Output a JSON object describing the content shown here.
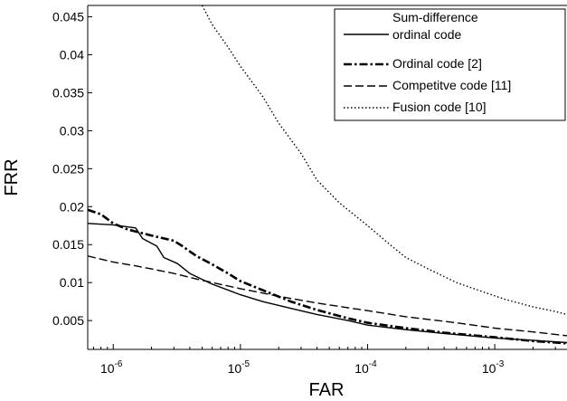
{
  "chart_data": {
    "type": "line",
    "title": "",
    "xlabel": "FAR",
    "ylabel": "FRR",
    "xscale": "log",
    "xlim": [
      6.3e-07,
      0.0037
    ],
    "ylim": [
      0.0012,
      0.0465
    ],
    "grid": false,
    "legend_position": "top-right",
    "x_ticks": [
      {
        "value": 1e-06,
        "base": "10",
        "exp": "-6"
      },
      {
        "value": 1e-05,
        "base": "10",
        "exp": "-5"
      },
      {
        "value": 0.0001,
        "base": "10",
        "exp": "-4"
      },
      {
        "value": 0.001,
        "base": "10",
        "exp": "-3"
      }
    ],
    "y_ticks": [
      {
        "value": 0.005,
        "label": "0.005"
      },
      {
        "value": 0.01,
        "label": "0.01"
      },
      {
        "value": 0.015,
        "label": "0.015"
      },
      {
        "value": 0.02,
        "label": "0.02"
      },
      {
        "value": 0.025,
        "label": "0.025"
      },
      {
        "value": 0.03,
        "label": "0.03"
      },
      {
        "value": 0.035,
        "label": "0.035"
      },
      {
        "value": 0.04,
        "label": "0.04"
      },
      {
        "value": 0.045,
        "label": "0.045"
      }
    ],
    "series": [
      {
        "name_lines": [
          "Sum-difference",
          "ordinal code"
        ],
        "style": "solid",
        "color": "#000000",
        "points": [
          [
            6.3e-07,
            0.0178
          ],
          [
            1e-06,
            0.0176
          ],
          [
            1.5e-06,
            0.0172
          ],
          [
            1.7e-06,
            0.0158
          ],
          [
            2.2e-06,
            0.0148
          ],
          [
            2.5e-06,
            0.0133
          ],
          [
            3.2e-06,
            0.0125
          ],
          [
            4e-06,
            0.0112
          ],
          [
            6e-06,
            0.0098
          ],
          [
            1e-05,
            0.0084
          ],
          [
            1.5e-05,
            0.0075
          ],
          [
            2.5e-05,
            0.0066
          ],
          [
            4e-05,
            0.0058
          ],
          [
            7e-05,
            0.005
          ],
          [
            0.0001,
            0.0044
          ],
          [
            0.0002,
            0.0038
          ],
          [
            0.0004,
            0.0033
          ],
          [
            0.001,
            0.0027
          ],
          [
            0.002,
            0.0024
          ],
          [
            0.0037,
            0.0021
          ]
        ]
      },
      {
        "name_lines": [
          "Ordinal code [2]"
        ],
        "style": "dashdot",
        "color": "#000000",
        "points": [
          [
            6.3e-07,
            0.0196
          ],
          [
            8e-07,
            0.019
          ],
          [
            1e-06,
            0.0178
          ],
          [
            1.3e-06,
            0.017
          ],
          [
            2e-06,
            0.0162
          ],
          [
            3e-06,
            0.0155
          ],
          [
            3.5e-06,
            0.0148
          ],
          [
            4.5e-06,
            0.0135
          ],
          [
            6e-06,
            0.0124
          ],
          [
            8e-06,
            0.0112
          ],
          [
            1e-05,
            0.0102
          ],
          [
            1.5e-05,
            0.009
          ],
          [
            2.5e-05,
            0.0075
          ],
          [
            4e-05,
            0.0064
          ],
          [
            7e-05,
            0.0053
          ],
          [
            0.0001,
            0.0047
          ],
          [
            0.0002,
            0.004
          ],
          [
            0.0004,
            0.0034
          ],
          [
            0.001,
            0.0028
          ],
          [
            0.002,
            0.0023
          ],
          [
            0.0037,
            0.002
          ]
        ]
      },
      {
        "name_lines": [
          "Competitve code [11]"
        ],
        "style": "dashed",
        "color": "#000000",
        "points": [
          [
            6.3e-07,
            0.0135
          ],
          [
            1e-06,
            0.0127
          ],
          [
            1.5e-06,
            0.0122
          ],
          [
            2e-06,
            0.0118
          ],
          [
            3e-06,
            0.0112
          ],
          [
            5e-06,
            0.0103
          ],
          [
            1e-05,
            0.0092
          ],
          [
            2e-05,
            0.0082
          ],
          [
            4e-05,
            0.0073
          ],
          [
            0.0001,
            0.0063
          ],
          [
            0.0002,
            0.0055
          ],
          [
            0.0005,
            0.0047
          ],
          [
            0.001,
            0.004
          ],
          [
            0.002,
            0.0035
          ],
          [
            0.0037,
            0.003
          ]
        ]
      },
      {
        "name_lines": [
          "Fusion code [10]"
        ],
        "style": "dotted",
        "color": "#000000",
        "points": [
          [
            5e-06,
            0.0465
          ],
          [
            6e-06,
            0.044
          ],
          [
            8e-06,
            0.041
          ],
          [
            1e-05,
            0.0385
          ],
          [
            1.5e-05,
            0.0345
          ],
          [
            2e-05,
            0.031
          ],
          [
            3e-05,
            0.027
          ],
          [
            4e-05,
            0.0235
          ],
          [
            6e-05,
            0.0205
          ],
          [
            0.0001,
            0.0175
          ],
          [
            0.00015,
            0.015
          ],
          [
            0.0002,
            0.0133
          ],
          [
            0.0003,
            0.0118
          ],
          [
            0.0005,
            0.01
          ],
          [
            0.0008,
            0.0088
          ],
          [
            0.0012,
            0.0078
          ],
          [
            0.002,
            0.0068
          ],
          [
            0.003,
            0.0062
          ],
          [
            0.0037,
            0.0058
          ]
        ]
      }
    ]
  }
}
